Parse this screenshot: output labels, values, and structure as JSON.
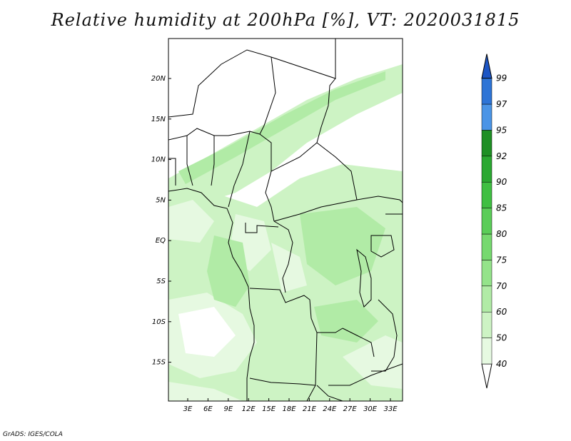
{
  "title": "Relative humidity at 200hPa [%], VT: 2020031815",
  "credit": "GrADS: IGES/COLA",
  "map": {
    "lat_labels": [
      "20N",
      "15N",
      "10N",
      "5N",
      "EQ",
      "5S",
      "10S",
      "15S"
    ],
    "lon_labels": [
      "3E",
      "6E",
      "9E",
      "12E",
      "15E",
      "18E",
      "21E",
      "24E",
      "27E",
      "30E",
      "33E"
    ]
  },
  "colorbar": {
    "levels": [
      "40",
      "50",
      "60",
      "70",
      "75",
      "80",
      "85",
      "90",
      "92",
      "95",
      "97",
      "99"
    ],
    "colors": [
      "#ffffff",
      "#e6f9e1",
      "#cdf3c4",
      "#b1eba6",
      "#94e38a",
      "#76d96f",
      "#5acd58",
      "#3fbf42",
      "#2aa831",
      "#1e8f24",
      "#4a94e6",
      "#2d74d6",
      "#1c55c4"
    ]
  }
}
